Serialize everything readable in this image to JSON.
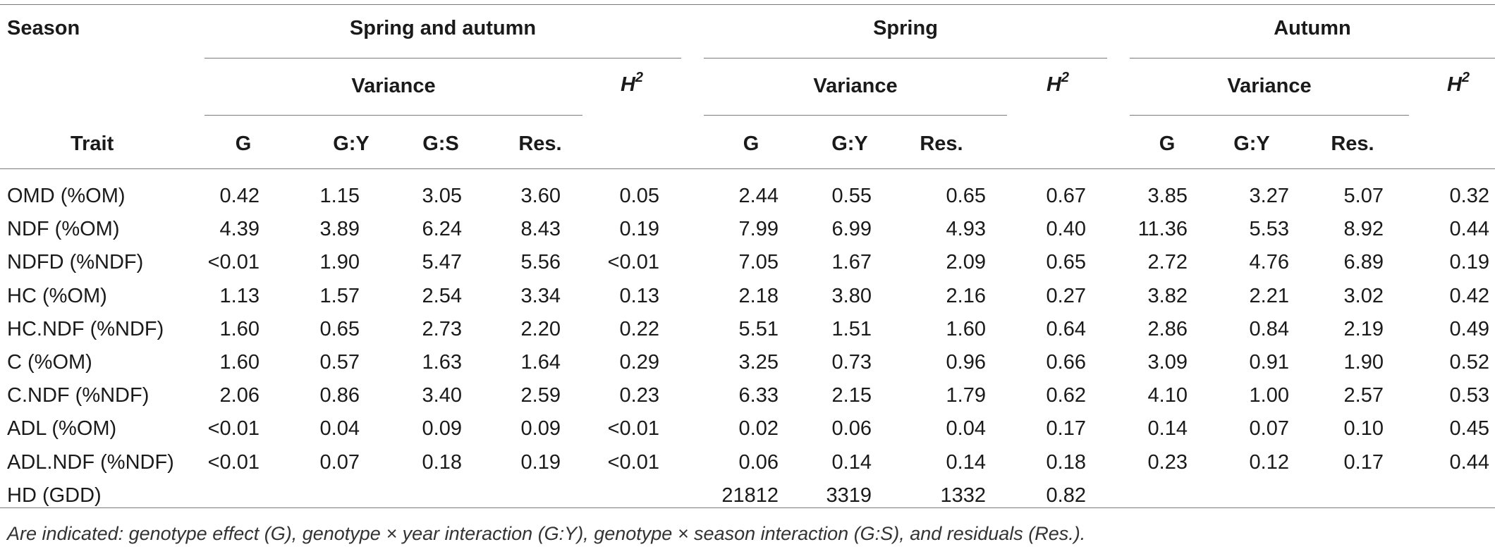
{
  "header": {
    "season_label": "Season",
    "trait_label": "Trait",
    "groups": [
      {
        "name": "Spring and autumn",
        "variance_label": "Variance",
        "h2_label": "H",
        "h2_sup": "2",
        "cols": [
          "G",
          "G:Y",
          "G:S",
          "Res."
        ]
      },
      {
        "name": "Spring",
        "variance_label": "Variance",
        "h2_label": "H",
        "h2_sup": "2",
        "cols": [
          "G",
          "G:Y",
          "Res."
        ]
      },
      {
        "name": "Autumn",
        "variance_label": "Variance",
        "h2_label": "H",
        "h2_sup": "2",
        "cols": [
          "G",
          "G:Y",
          "Res."
        ]
      }
    ]
  },
  "rows": [
    {
      "trait": "OMD (%OM)",
      "sa": [
        "0.42",
        "1.15",
        "3.05",
        "3.60",
        "0.05"
      ],
      "sp": [
        "2.44",
        "0.55",
        "0.65",
        "0.67"
      ],
      "au": [
        "3.85",
        "3.27",
        "5.07",
        "0.32"
      ]
    },
    {
      "trait": "NDF (%OM)",
      "sa": [
        "4.39",
        "3.89",
        "6.24",
        "8.43",
        "0.19"
      ],
      "sp": [
        "7.99",
        "6.99",
        "4.93",
        "0.40"
      ],
      "au": [
        "11.36",
        "5.53",
        "8.92",
        "0.44"
      ]
    },
    {
      "trait": "NDFD (%NDF)",
      "sa": [
        "<0.01",
        "1.90",
        "5.47",
        "5.56",
        "<0.01"
      ],
      "sp": [
        "7.05",
        "1.67",
        "2.09",
        "0.65"
      ],
      "au": [
        "2.72",
        "4.76",
        "6.89",
        "0.19"
      ]
    },
    {
      "trait": "HC (%OM)",
      "sa": [
        "1.13",
        "1.57",
        "2.54",
        "3.34",
        "0.13"
      ],
      "sp": [
        "2.18",
        "3.80",
        "2.16",
        "0.27"
      ],
      "au": [
        "3.82",
        "2.21",
        "3.02",
        "0.42"
      ]
    },
    {
      "trait": "HC.NDF (%NDF)",
      "sa": [
        "1.60",
        "0.65",
        "2.73",
        "2.20",
        "0.22"
      ],
      "sp": [
        "5.51",
        "1.51",
        "1.60",
        "0.64"
      ],
      "au": [
        "2.86",
        "0.84",
        "2.19",
        "0.49"
      ]
    },
    {
      "trait": "C (%OM)",
      "sa": [
        "1.60",
        "0.57",
        "1.63",
        "1.64",
        "0.29"
      ],
      "sp": [
        "3.25",
        "0.73",
        "0.96",
        "0.66"
      ],
      "au": [
        "3.09",
        "0.91",
        "1.90",
        "0.52"
      ]
    },
    {
      "trait": "C.NDF (%NDF)",
      "sa": [
        "2.06",
        "0.86",
        "3.40",
        "2.59",
        "0.23"
      ],
      "sp": [
        "6.33",
        "2.15",
        "1.79",
        "0.62"
      ],
      "au": [
        "4.10",
        "1.00",
        "2.57",
        "0.53"
      ]
    },
    {
      "trait": "ADL (%OM)",
      "sa": [
        "<0.01",
        "0.04",
        "0.09",
        "0.09",
        "<0.01"
      ],
      "sp": [
        "0.02",
        "0.06",
        "0.04",
        "0.17"
      ],
      "au": [
        "0.14",
        "0.07",
        "0.10",
        "0.45"
      ]
    },
    {
      "trait": "ADL.NDF (%NDF)",
      "sa": [
        "<0.01",
        "0.07",
        "0.18",
        "0.19",
        "<0.01"
      ],
      "sp": [
        "0.06",
        "0.14",
        "0.14",
        "0.18"
      ],
      "au": [
        "0.23",
        "0.12",
        "0.17",
        "0.44"
      ]
    },
    {
      "trait": "HD (GDD)",
      "sa": [
        "",
        "",
        "",
        "",
        ""
      ],
      "sp": [
        "21812",
        "3319",
        "1332",
        "0.82"
      ],
      "au": [
        "",
        "",
        "",
        ""
      ]
    }
  ],
  "footnote": "Are indicated: genotype effect (G), genotype × year interaction (G:Y), genotype × season interaction (G:S), and residuals (Res.)."
}
